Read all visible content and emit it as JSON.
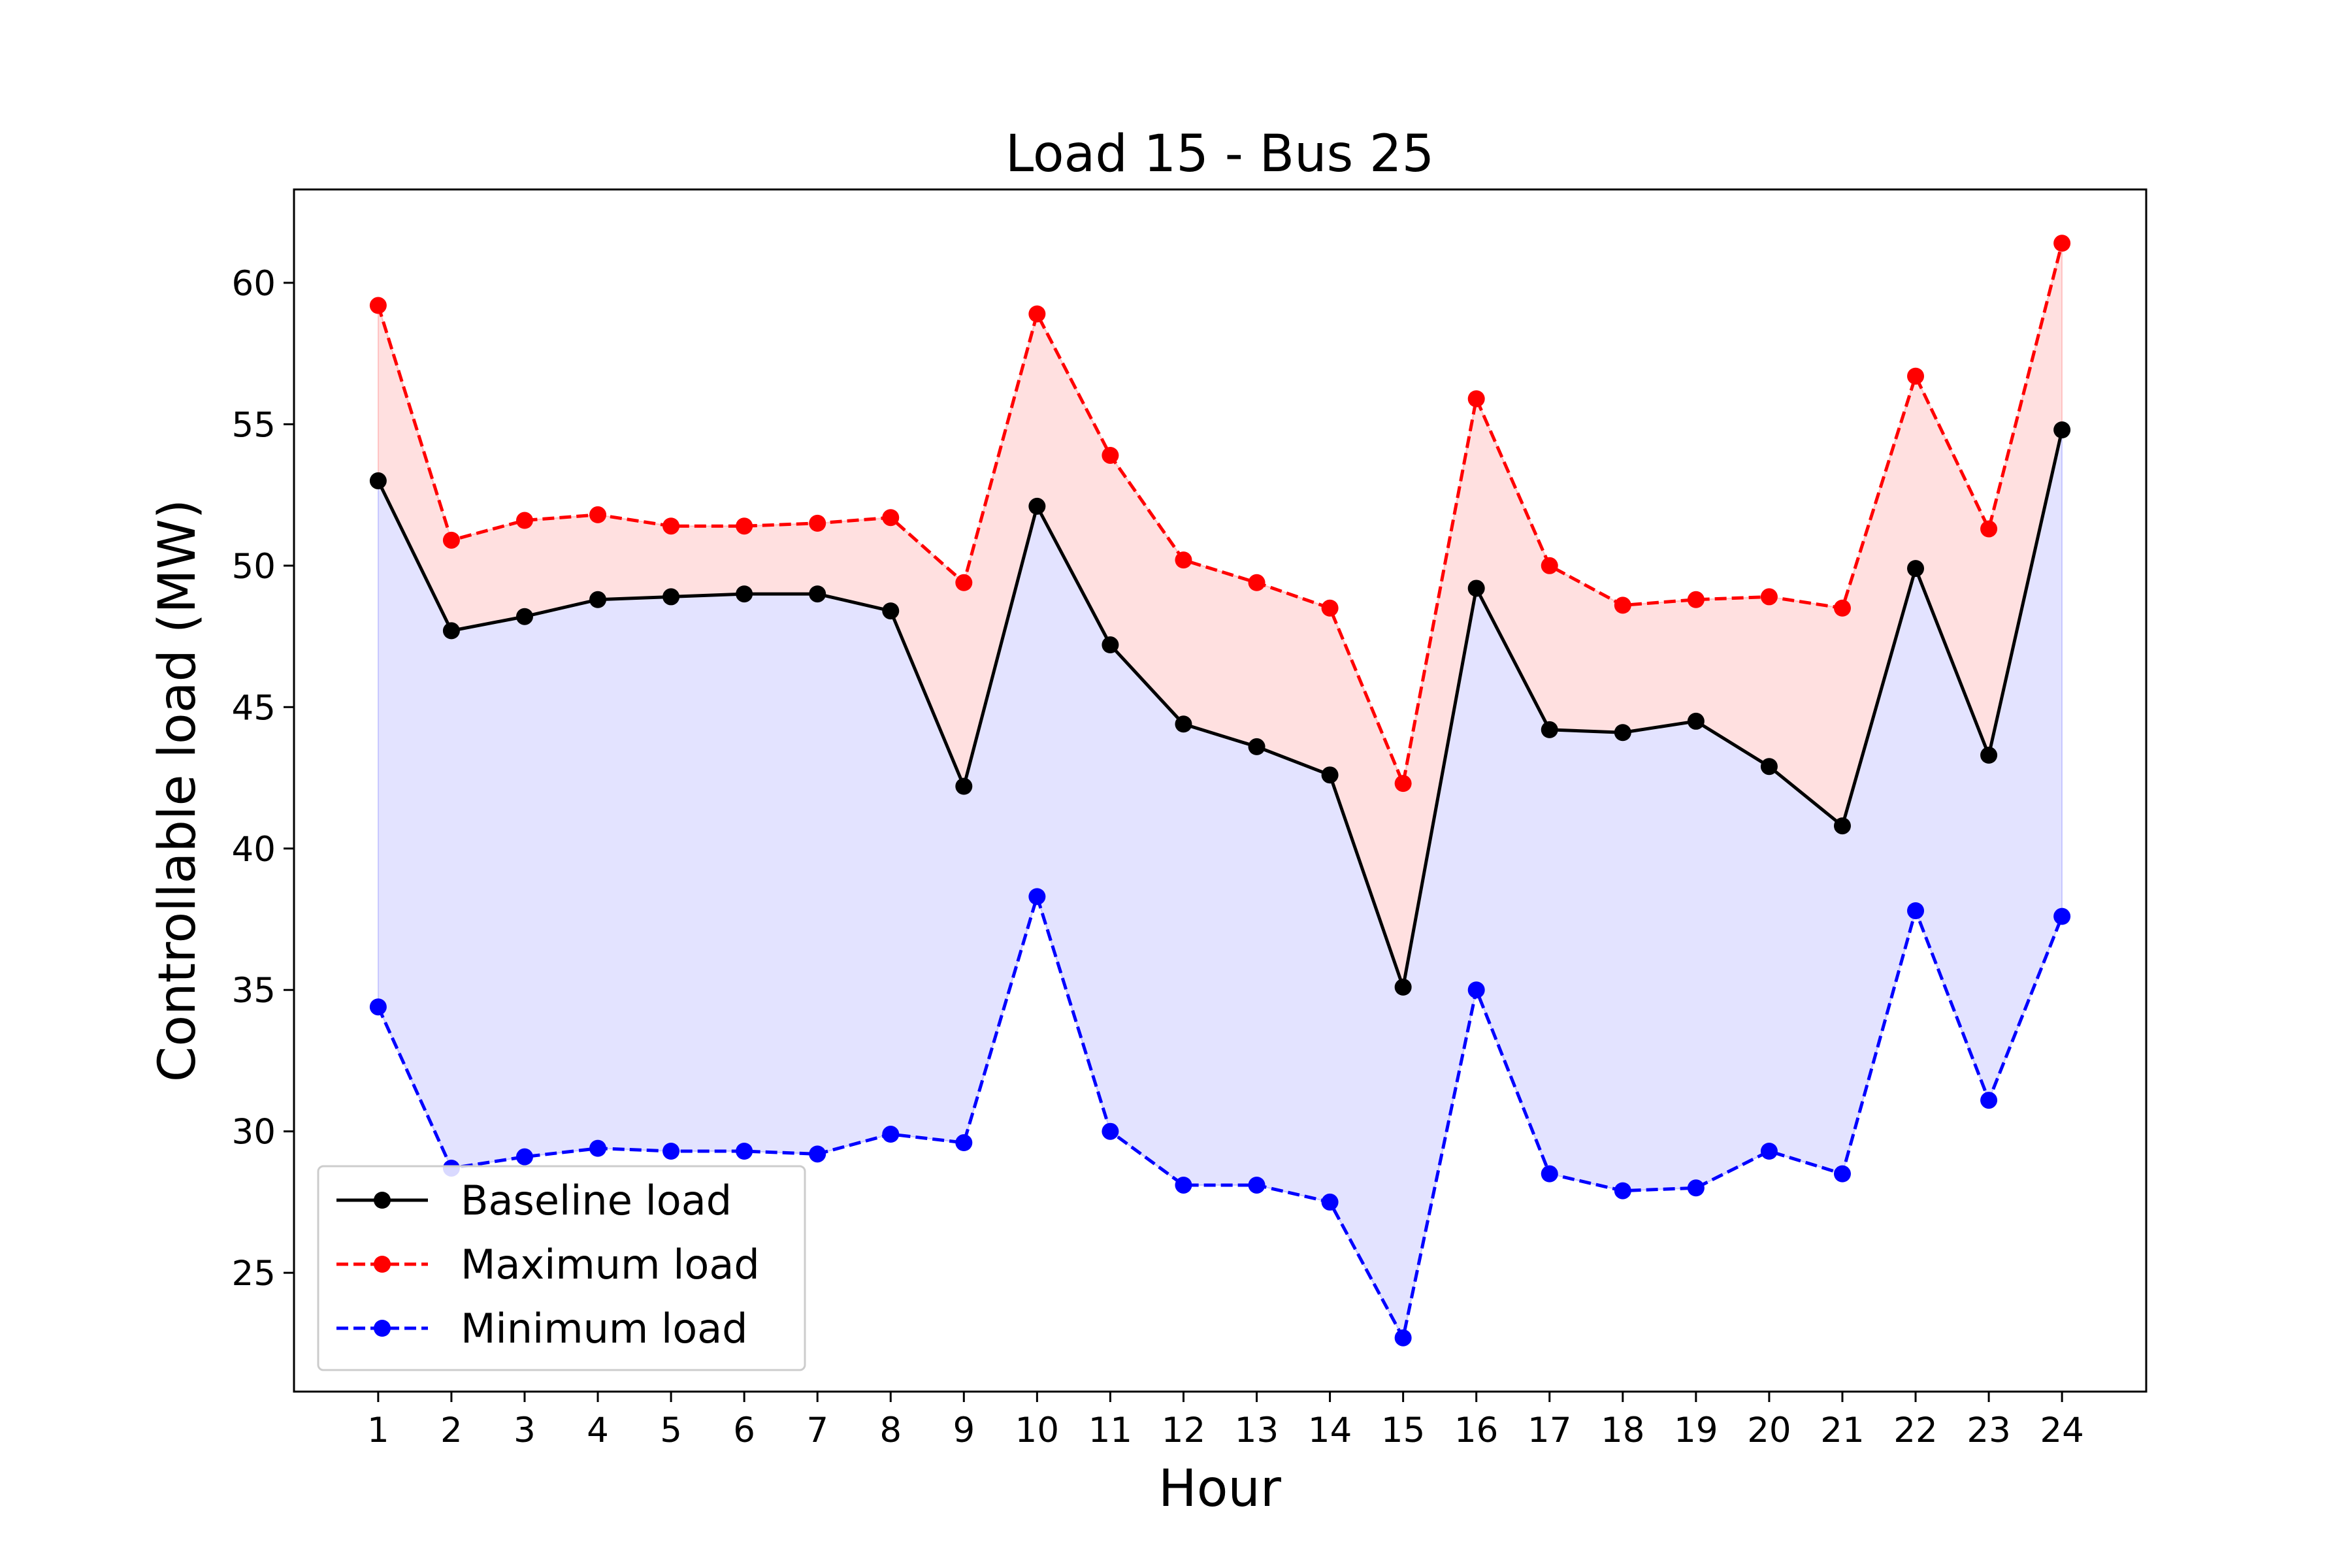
{
  "chart_data": {
    "type": "line",
    "title": "Load 15 - Bus 25",
    "xlabel": "Hour",
    "ylabel": "Controllable load (MW)",
    "x": [
      1,
      2,
      3,
      4,
      5,
      6,
      7,
      8,
      9,
      10,
      11,
      12,
      13,
      14,
      15,
      16,
      17,
      18,
      19,
      20,
      21,
      22,
      23,
      24
    ],
    "xlim": [
      -0.15,
      25.15
    ],
    "ylim": [
      20.8,
      63.3
    ],
    "yticks": [
      25,
      30,
      35,
      40,
      45,
      50,
      55,
      60
    ],
    "grid": false,
    "legend_position": "lower-left",
    "series": [
      {
        "name": "Baseline load",
        "color": "#000000",
        "linestyle": "solid",
        "marker": "circle",
        "values": [
          53.0,
          47.7,
          48.2,
          48.8,
          48.9,
          49.0,
          49.0,
          48.4,
          42.2,
          52.1,
          47.2,
          44.4,
          43.6,
          42.6,
          35.1,
          49.2,
          44.2,
          44.1,
          44.5,
          42.9,
          40.8,
          49.9,
          43.3,
          54.8
        ]
      },
      {
        "name": "Maximum load",
        "color": "#ff0000",
        "linestyle": "dashed",
        "marker": "circle",
        "values": [
          59.2,
          50.9,
          51.6,
          51.8,
          51.4,
          51.4,
          51.5,
          51.7,
          49.4,
          58.9,
          53.9,
          50.2,
          49.4,
          48.5,
          42.3,
          55.9,
          50.0,
          48.6,
          48.8,
          48.9,
          48.5,
          56.7,
          51.3,
          61.4
        ]
      },
      {
        "name": "Minimum load",
        "color": "#0000ff",
        "linestyle": "dashed",
        "marker": "circle",
        "values": [
          34.4,
          28.7,
          29.1,
          29.4,
          29.3,
          29.3,
          29.2,
          29.9,
          29.6,
          38.3,
          30.0,
          28.1,
          28.1,
          27.5,
          22.7,
          35.0,
          28.5,
          27.9,
          28.0,
          29.3,
          28.5,
          37.8,
          31.1,
          37.6
        ]
      }
    ],
    "fill_bands": [
      {
        "between": [
          "Baseline load",
          "Maximum load"
        ],
        "color": "#ff0000",
        "opacity": 0.12
      },
      {
        "between": [
          "Minimum load",
          "Baseline load"
        ],
        "color": "#0000ff",
        "opacity": 0.11
      }
    ]
  }
}
